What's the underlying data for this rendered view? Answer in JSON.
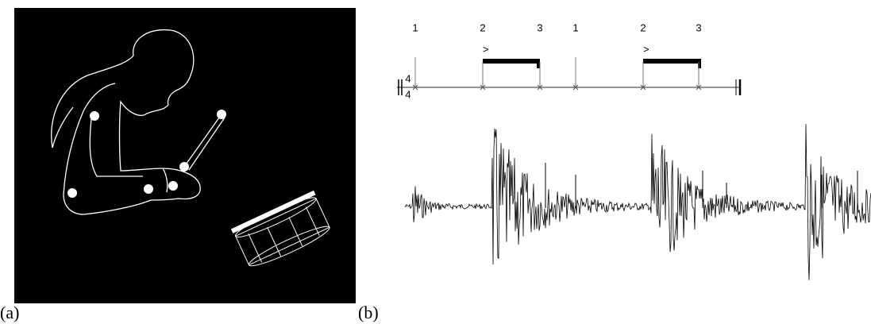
{
  "labels": {
    "a": "(a)",
    "b": "(b)"
  },
  "notation": {
    "counts": [
      "1",
      "2",
      "3",
      "1",
      "2",
      "3"
    ],
    "accents": [
      ">",
      ">"
    ],
    "time_signature": [
      "4",
      "4"
    ]
  }
}
